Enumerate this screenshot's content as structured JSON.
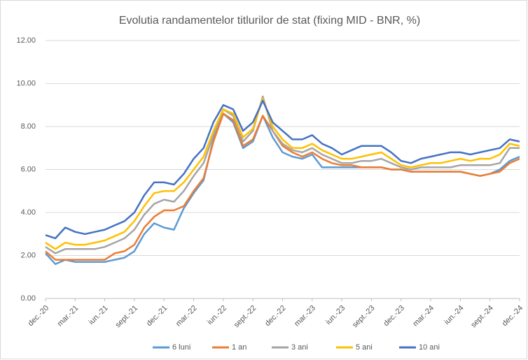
{
  "chart_data": {
    "type": "line",
    "title": "Evolutia randamentelor titlurilor de stat (fixing MID - BNR, %)",
    "categories": [
      "dec.-20",
      null,
      null,
      "mar.-21",
      null,
      null,
      "iun.-21",
      null,
      null,
      "sept.-21",
      null,
      null,
      "dec.-21",
      null,
      null,
      "mar.-22",
      null,
      null,
      "iun.-22",
      null,
      null,
      "sept.-22",
      null,
      null,
      "dec.-22",
      null,
      null,
      "mar.-23",
      null,
      null,
      "iun.-23",
      null,
      null,
      "sept.-23",
      null,
      null,
      "dec.-23",
      null,
      null,
      "mar.-24",
      null,
      null,
      "iun.-24",
      null,
      null,
      "sept.-24",
      null,
      null,
      "dec.-24"
    ],
    "series": [
      {
        "name": "6 luni",
        "color": "#5b9bd5",
        "values": [
          2.1,
          1.6,
          1.8,
          1.7,
          1.7,
          1.7,
          1.7,
          1.8,
          1.9,
          2.2,
          3.0,
          3.5,
          3.3,
          3.2,
          4.2,
          4.9,
          5.5,
          7.4,
          8.6,
          8.2,
          7.0,
          7.3,
          8.5,
          7.5,
          6.8,
          6.6,
          6.5,
          6.7,
          6.1,
          6.1,
          6.1,
          6.1,
          6.1,
          6.1,
          6.1,
          6.0,
          6.0,
          5.9,
          5.9,
          5.9,
          5.9,
          5.9,
          5.9,
          5.8,
          5.7,
          5.8,
          6.0,
          6.4,
          6.6
        ]
      },
      {
        "name": "1 an",
        "color": "#ed7d31",
        "values": [
          2.2,
          1.8,
          1.8,
          1.8,
          1.8,
          1.8,
          1.8,
          2.1,
          2.2,
          2.5,
          3.3,
          3.8,
          4.1,
          4.1,
          4.3,
          5.0,
          5.6,
          7.3,
          8.6,
          8.3,
          7.1,
          7.4,
          8.5,
          7.8,
          7.1,
          6.8,
          6.6,
          6.8,
          6.5,
          6.3,
          6.2,
          6.2,
          6.1,
          6.1,
          6.1,
          6.0,
          6.0,
          5.9,
          5.9,
          5.9,
          5.9,
          5.9,
          5.9,
          5.8,
          5.7,
          5.8,
          5.9,
          6.3,
          6.5
        ]
      },
      {
        "name": "3 ani",
        "color": "#a5a5a5",
        "values": [
          2.4,
          2.1,
          2.3,
          2.3,
          2.3,
          2.3,
          2.4,
          2.6,
          2.8,
          3.2,
          3.9,
          4.4,
          4.6,
          4.5,
          5.0,
          5.7,
          6.3,
          7.6,
          8.8,
          8.5,
          7.3,
          7.8,
          9.4,
          7.8,
          7.2,
          6.9,
          6.8,
          7.0,
          6.7,
          6.5,
          6.3,
          6.3,
          6.4,
          6.4,
          6.5,
          6.3,
          6.1,
          6.0,
          6.1,
          6.1,
          6.1,
          6.1,
          6.2,
          6.2,
          6.2,
          6.2,
          6.3,
          7.0,
          7.0
        ]
      },
      {
        "name": "5 ani",
        "color": "#ffc000",
        "values": [
          2.6,
          2.3,
          2.6,
          2.5,
          2.5,
          2.6,
          2.7,
          2.9,
          3.1,
          3.6,
          4.3,
          4.9,
          5.0,
          5.0,
          5.4,
          6.0,
          6.6,
          7.8,
          8.8,
          8.6,
          7.5,
          7.9,
          9.3,
          8.0,
          7.4,
          7.0,
          7.0,
          7.2,
          6.9,
          6.7,
          6.5,
          6.5,
          6.6,
          6.7,
          6.8,
          6.5,
          6.2,
          6.1,
          6.2,
          6.3,
          6.3,
          6.4,
          6.5,
          6.4,
          6.5,
          6.5,
          6.7,
          7.2,
          7.1
        ]
      },
      {
        "name": "10 ani",
        "color": "#4472c4",
        "values": [
          2.95,
          2.8,
          3.3,
          3.1,
          3.0,
          3.1,
          3.2,
          3.4,
          3.6,
          4.0,
          4.8,
          5.4,
          5.4,
          5.3,
          5.8,
          6.5,
          7.0,
          8.2,
          9.0,
          8.8,
          7.8,
          8.2,
          9.2,
          8.2,
          7.8,
          7.4,
          7.4,
          7.6,
          7.2,
          7.0,
          6.7,
          6.9,
          7.1,
          7.1,
          7.1,
          6.8,
          6.4,
          6.3,
          6.5,
          6.6,
          6.7,
          6.8,
          6.8,
          6.7,
          6.8,
          6.9,
          7.0,
          7.4,
          7.3
        ]
      }
    ],
    "ylim": [
      0,
      12
    ],
    "yticks": [
      {
        "value": 0,
        "label": "0.00"
      },
      {
        "value": 2,
        "label": "2.00"
      },
      {
        "value": 4,
        "label": "4.00"
      },
      {
        "value": 6,
        "label": "6.00"
      },
      {
        "value": 8,
        "label": "8.00"
      },
      {
        "value": 10,
        "label": "10.00"
      },
      {
        "value": 12,
        "label": "12.00"
      }
    ],
    "grid": true,
    "legend": "bottom"
  }
}
